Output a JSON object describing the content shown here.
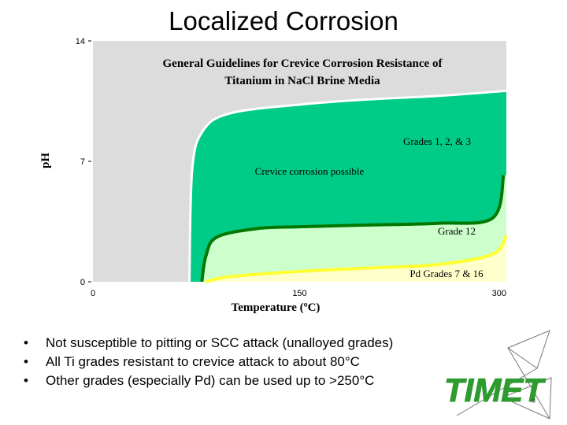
{
  "slide": {
    "title": "Localized Corrosion",
    "bullets": [
      "Not susceptible to pitting or SCC attack (unalloyed grades)",
      "All Ti grades resistant to crevice attack to about 80°C",
      "Other grades (especially Pd) can be used up to >250°C"
    ],
    "logo_text": "TIMET"
  },
  "chart_data": {
    "type": "area",
    "title": "General Guidelines for Crevice Corrosion Resistance of Titanium in NaCl Brine Media",
    "xlabel": "Temperature (ºC)",
    "ylabel": "pH",
    "xlim": [
      0,
      300
    ],
    "ylim": [
      0,
      14
    ],
    "x_ticks": [
      "0",
      "150",
      "300"
    ],
    "y_ticks": [
      "0",
      "7",
      "14"
    ],
    "grid": false,
    "series": [
      {
        "name": "Grades 1, 2, & 3",
        "color": "#00cc88",
        "x": [
          70,
          72,
          80,
          100,
          150,
          200,
          250,
          300
        ],
        "y": [
          0,
          6.5,
          8.8,
          9.8,
          10.3,
          10.6,
          10.8,
          11.1
        ]
      },
      {
        "name": "Grade 12",
        "color": "#007f00",
        "x": [
          79,
          82,
          90,
          120,
          150,
          200,
          250,
          290,
          298
        ],
        "y": [
          0,
          1.5,
          2.6,
          3.1,
          3.2,
          3.3,
          3.4,
          3.7,
          6.2
        ]
      },
      {
        "name": "Pd Grades 7 & 16",
        "color": "#ffff33",
        "x": [
          82,
          100,
          150,
          200,
          250,
          290,
          300
        ],
        "y": [
          0,
          0.3,
          0.6,
          0.8,
          1.0,
          1.6,
          2.7
        ]
      }
    ],
    "annotations": [
      "Crevice corrosion possible"
    ],
    "colors": {
      "immune_region": "#dcdcdc",
      "grades_1_2_3_region": "#00cc88",
      "grade_12_region": "#ccffcc",
      "pd_region": "#ffffcc"
    }
  }
}
